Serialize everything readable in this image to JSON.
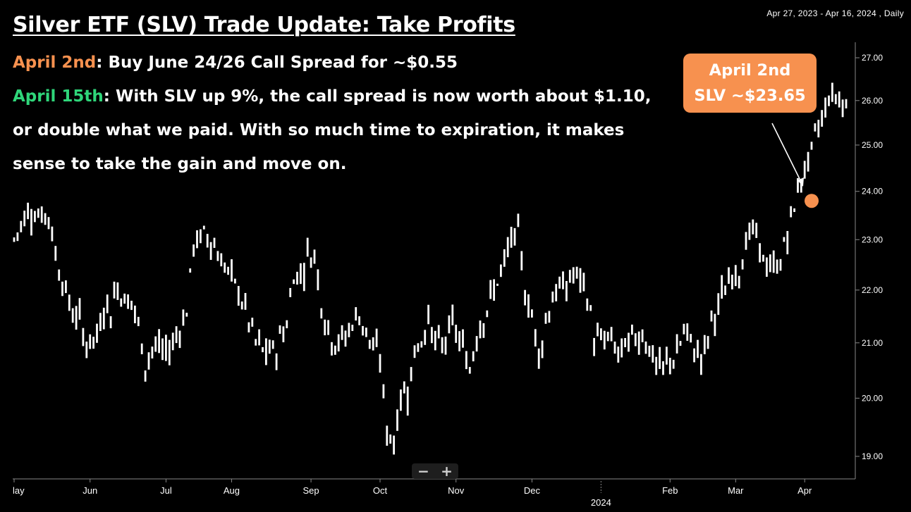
{
  "header": {
    "title": "Silver ETF (SLV) Trade Update: Take Profits",
    "line1_date": "April 2nd",
    "line1_text": ": Buy June 24/26 Call Spread for ~$0.55",
    "line2_date": "April 15th",
    "line2_text": ": With SLV up 9%, the call spread is now worth about $1.10,",
    "line3_text": "or double what we paid. With so much time to expiration, it makes",
    "line4_text": "sense to take the gain and move on."
  },
  "colors": {
    "accent_orange": "#f7914f",
    "accent_green": "#2fd67a",
    "bars": "#ffffff"
  },
  "range_label": "Apr 27, 2023 - Apr 16, 2024 , Daily",
  "annotation": {
    "line1": "April 2nd",
    "line2": "SLV ~$23.65",
    "marker_value": 23.8
  },
  "zoom": {
    "minus": "−",
    "plus": "+"
  },
  "chart_data": {
    "type": "ohlc",
    "title": "Silver ETF (SLV) Trade Update: Take Profits",
    "ylim": [
      18.7,
      27.6
    ],
    "x_count": 242,
    "y_ticks": [
      "19.00",
      "20.00",
      "21.00",
      "22.00",
      "23.00",
      "24.00",
      "25.00",
      "26.00",
      "27.00"
    ],
    "y_tick_values": [
      19,
      20,
      21,
      22,
      23,
      24,
      25,
      26,
      27
    ],
    "x_ticks": [
      {
        "label": "lay",
        "index": 0
      },
      {
        "label": "Jun",
        "index": 22
      },
      {
        "label": "Jul",
        "index": 44
      },
      {
        "label": "Aug",
        "index": 63
      },
      {
        "label": "Sep",
        "index": 86
      },
      {
        "label": "Oct",
        "index": 106
      },
      {
        "label": "Nov",
        "index": 128
      },
      {
        "label": "Dec",
        "index": 150
      },
      {
        "label": "Feb",
        "index": 190
      },
      {
        "label": "Mar",
        "index": 209
      },
      {
        "label": "Apr",
        "index": 229
      }
    ],
    "year_marker": {
      "label": "2024",
      "index": 170
    },
    "close_anchors": [
      [
        0,
        23.0
      ],
      [
        4,
        23.6
      ],
      [
        8,
        23.5
      ],
      [
        10,
        23.5
      ],
      [
        12,
        22.7
      ],
      [
        16,
        21.7
      ],
      [
        19,
        21.4
      ],
      [
        21,
        21.0
      ],
      [
        24,
        21.1
      ],
      [
        26,
        21.7
      ],
      [
        28,
        21.6
      ],
      [
        30,
        22.1
      ],
      [
        32,
        21.8
      ],
      [
        34,
        21.8
      ],
      [
        36,
        21.3
      ],
      [
        38,
        20.6
      ],
      [
        40,
        20.9
      ],
      [
        42,
        20.9
      ],
      [
        44,
        20.8
      ],
      [
        46,
        21.0
      ],
      [
        48,
        21.3
      ],
      [
        50,
        21.6
      ],
      [
        52,
        22.9
      ],
      [
        55,
        23.1
      ],
      [
        57,
        23.0
      ],
      [
        60,
        22.6
      ],
      [
        63,
        22.2
      ],
      [
        65,
        22.0
      ],
      [
        68,
        21.4
      ],
      [
        70,
        21.0
      ],
      [
        73,
        20.8
      ],
      [
        76,
        20.9
      ],
      [
        79,
        21.4
      ],
      [
        81,
        22.3
      ],
      [
        83,
        22.3
      ],
      [
        85,
        22.7
      ],
      [
        87,
        22.7
      ],
      [
        89,
        21.8
      ],
      [
        91,
        21.2
      ],
      [
        94,
        21.0
      ],
      [
        96,
        21.1
      ],
      [
        98,
        21.4
      ],
      [
        100,
        21.5
      ],
      [
        102,
        21.2
      ],
      [
        104,
        20.9
      ],
      [
        106,
        20.7
      ],
      [
        108,
        19.4
      ],
      [
        110,
        19.3
      ],
      [
        112,
        20.0
      ],
      [
        114,
        20.2
      ],
      [
        116,
        20.8
      ],
      [
        118,
        21.1
      ],
      [
        120,
        21.4
      ],
      [
        122,
        21.0
      ],
      [
        124,
        20.9
      ],
      [
        126,
        21.3
      ],
      [
        128,
        21.2
      ],
      [
        130,
        20.9
      ],
      [
        132,
        20.5
      ],
      [
        134,
        21.2
      ],
      [
        136,
        21.5
      ],
      [
        138,
        21.8
      ],
      [
        140,
        22.2
      ],
      [
        142,
        22.5
      ],
      [
        144,
        23.0
      ],
      [
        146,
        23.1
      ],
      [
        148,
        22.0
      ],
      [
        150,
        21.5
      ],
      [
        152,
        20.8
      ],
      [
        154,
        21.4
      ],
      [
        156,
        21.9
      ],
      [
        158,
        22.0
      ],
      [
        160,
        22.1
      ],
      [
        162,
        22.3
      ],
      [
        164,
        22.2
      ],
      [
        166,
        21.9
      ],
      [
        168,
        21.1
      ],
      [
        170,
        21.0
      ],
      [
        172,
        21.1
      ],
      [
        174,
        20.9
      ],
      [
        176,
        20.8
      ],
      [
        178,
        21.0
      ],
      [
        180,
        21.1
      ],
      [
        182,
        21.2
      ],
      [
        184,
        20.9
      ],
      [
        186,
        20.6
      ],
      [
        188,
        20.5
      ],
      [
        190,
        20.7
      ],
      [
        192,
        20.8
      ],
      [
        194,
        21.2
      ],
      [
        196,
        21.0
      ],
      [
        198,
        20.8
      ],
      [
        200,
        20.8
      ],
      [
        202,
        21.4
      ],
      [
        204,
        21.7
      ],
      [
        206,
        22.0
      ],
      [
        208,
        22.3
      ],
      [
        210,
        22.4
      ],
      [
        212,
        22.9
      ],
      [
        214,
        23.2
      ],
      [
        216,
        22.8
      ],
      [
        218,
        22.5
      ],
      [
        220,
        22.4
      ],
      [
        222,
        22.6
      ],
      [
        224,
        23.1
      ],
      [
        226,
        23.7
      ],
      [
        228,
        24.3
      ],
      [
        230,
        24.6
      ],
      [
        232,
        25.2
      ],
      [
        234,
        25.6
      ],
      [
        236,
        26.1
      ],
      [
        238,
        26.1
      ],
      [
        240,
        26.0
      ],
      [
        241,
        25.8
      ]
    ]
  }
}
